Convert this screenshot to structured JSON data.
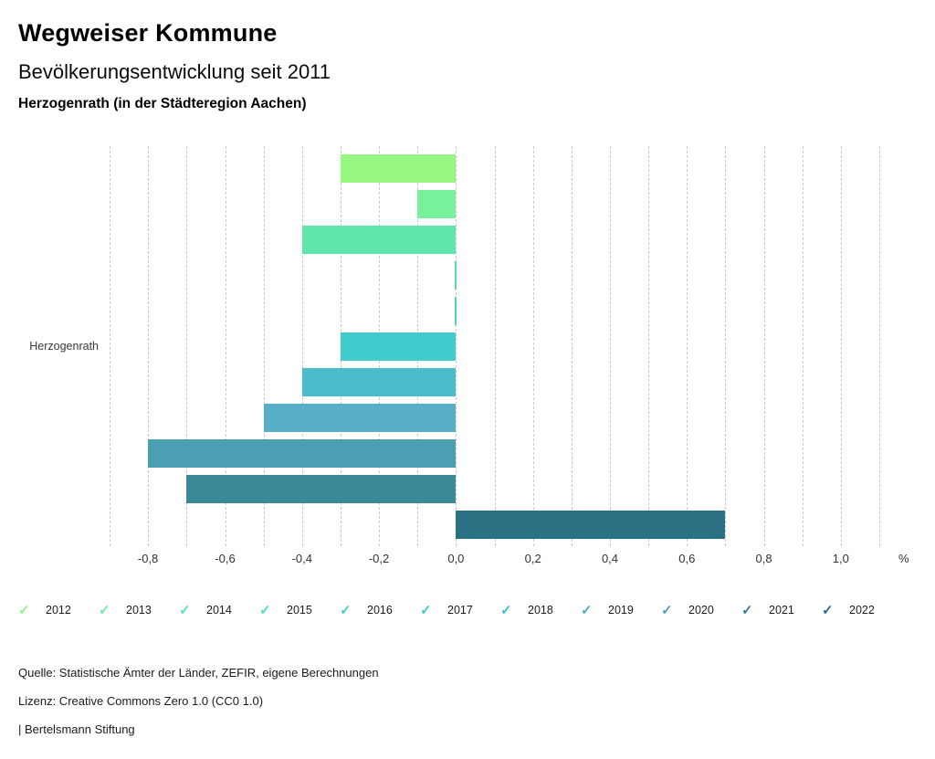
{
  "header": {
    "title": "Wegweiser Kommune",
    "subtitle": "Bevölkerungsentwicklung seit 2011",
    "region": "Herzogenrath (in der Städteregion Aachen)"
  },
  "chart_data": {
    "type": "bar",
    "orientation": "horizontal",
    "title": "Bevölkerungsentwicklung seit 2011",
    "category_label": "Herzogenrath",
    "unit": "%",
    "xlim": [
      -0.9,
      1.1
    ],
    "grid": true,
    "grid_step": 0.1,
    "series": [
      {
        "name": "2012",
        "value": -0.3,
        "color": "#97f783"
      },
      {
        "name": "2013",
        "value": -0.1,
        "color": "#79f09b"
      },
      {
        "name": "2014",
        "value": -0.4,
        "color": "#5ee6ac"
      },
      {
        "name": "2015",
        "value": 0.0,
        "color": "#55dfb7"
      },
      {
        "name": "2016",
        "value": 0.0,
        "color": "#4cd5c1"
      },
      {
        "name": "2017",
        "value": -0.3,
        "color": "#41cbcc"
      },
      {
        "name": "2018",
        "value": -0.4,
        "color": "#4abccb"
      },
      {
        "name": "2019",
        "value": -0.5,
        "color": "#57b0c7"
      },
      {
        "name": "2020",
        "value": -0.8,
        "color": "#4c9fb3"
      },
      {
        "name": "2021",
        "value": -0.7,
        "color": "#3b8898"
      },
      {
        "name": "2022",
        "value": 0.7,
        "color": "#2a7183"
      }
    ],
    "ticks": [
      {
        "value": -0.8,
        "label": "-0,8"
      },
      {
        "value": -0.6,
        "label": "-0,6"
      },
      {
        "value": -0.4,
        "label": "-0,4"
      },
      {
        "value": -0.2,
        "label": "-0,2"
      },
      {
        "value": 0.0,
        "label": "0,0"
      },
      {
        "value": 0.2,
        "label": "0,2"
      },
      {
        "value": 0.4,
        "label": "0,4"
      },
      {
        "value": 0.6,
        "label": "0,6"
      },
      {
        "value": 0.8,
        "label": "0,8"
      },
      {
        "value": 1.0,
        "label": "1,0"
      }
    ]
  },
  "legend": {
    "check_glyph": "✓",
    "items": [
      {
        "label": "2012",
        "color": "#90f587"
      },
      {
        "label": "2013",
        "color": "#68efa0"
      },
      {
        "label": "2014",
        "color": "#52e5b5"
      },
      {
        "label": "2015",
        "color": "#4adcbd"
      },
      {
        "label": "2016",
        "color": "#45d2c5"
      },
      {
        "label": "2017",
        "color": "#3fc8cd"
      },
      {
        "label": "2018",
        "color": "#47bacb"
      },
      {
        "label": "2019",
        "color": "#52aec6"
      },
      {
        "label": "2020",
        "color": "#4da3bc"
      },
      {
        "label": "2021",
        "color": "#33809e"
      },
      {
        "label": "2022",
        "color": "#256e86"
      }
    ]
  },
  "footer": {
    "source": "Quelle: Statistische Ämter der Länder, ZEFIR, eigene Berechnungen",
    "license": "Lizenz: Creative Commons Zero 1.0 (CC0 1.0)",
    "attribution": "| Bertelsmann Stiftung"
  }
}
